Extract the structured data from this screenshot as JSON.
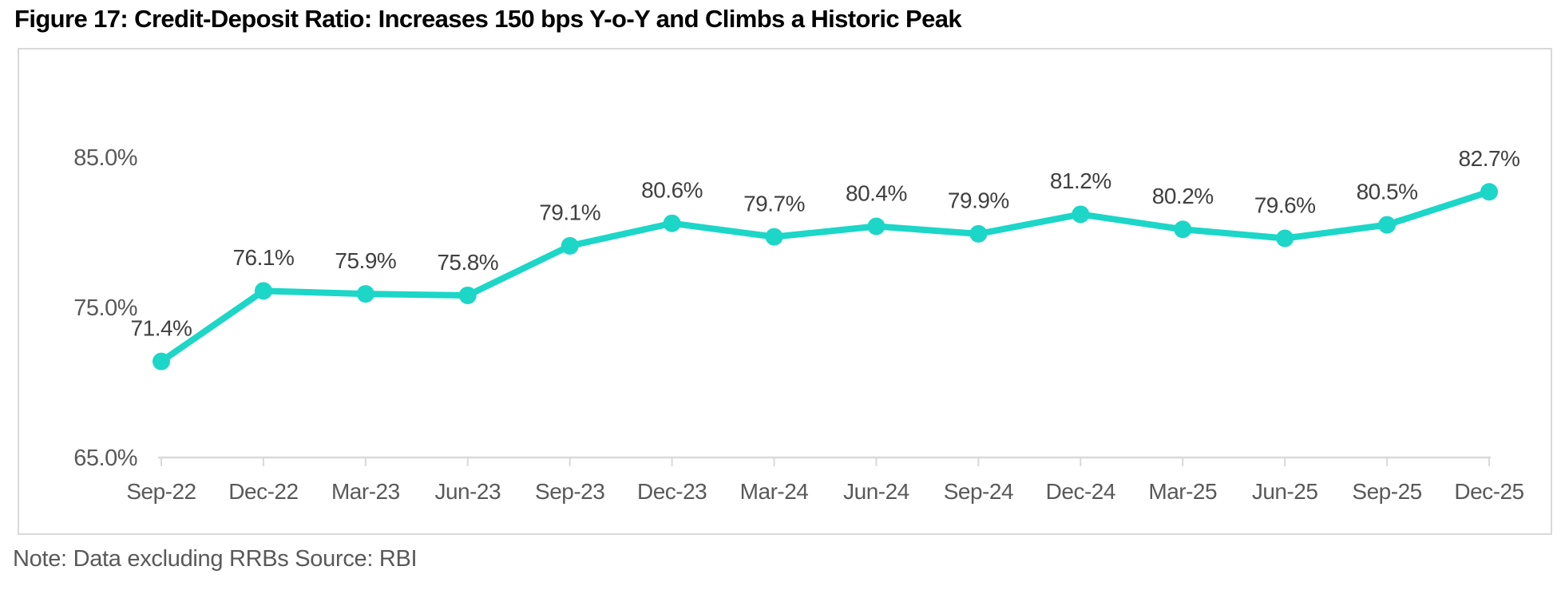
{
  "title": "Figure 17: Credit-Deposit Ratio: Increases 150 bps Y-o-Y and Climbs a Historic Peak",
  "note": "Note: Data excluding RRBs Source: RBI",
  "colors": {
    "line": "#1cd6c7",
    "marker": "#1cd6c7",
    "axis": "#d9d9d9",
    "data_label": "#404040",
    "axis_label": "#595959",
    "title": "#000000",
    "border": "#d9d9d9"
  },
  "chart_data": {
    "type": "line",
    "series_name": "Credit-Deposit Ratio",
    "categories": [
      "Sep-22",
      "Dec-22",
      "Mar-23",
      "Jun-23",
      "Sep-23",
      "Dec-23",
      "Mar-24",
      "Jun-24",
      "Sep-24",
      "Dec-24",
      "Mar-25",
      "Jun-25",
      "Sep-25",
      "Dec-25"
    ],
    "values": [
      71.4,
      76.1,
      75.9,
      75.8,
      79.1,
      80.6,
      79.7,
      80.4,
      79.9,
      81.2,
      80.2,
      79.6,
      80.5,
      82.7
    ],
    "data_labels": [
      "71.4%",
      "76.1%",
      "75.9%",
      "75.8%",
      "79.1%",
      "80.6%",
      "79.7%",
      "80.4%",
      "79.9%",
      "81.2%",
      "80.2%",
      "79.6%",
      "80.5%",
      "82.7%"
    ],
    "y_ticks": [
      {
        "label": "85.0%",
        "value": 85.0
      },
      {
        "label": "75.0%",
        "value": 75.0
      },
      {
        "label": "65.0%",
        "value": 65.0
      }
    ],
    "ylim": [
      65.0,
      85.0
    ],
    "grid": "off",
    "legend": "none",
    "data_labels_position": "above",
    "xlabel": "",
    "ylabel": ""
  }
}
